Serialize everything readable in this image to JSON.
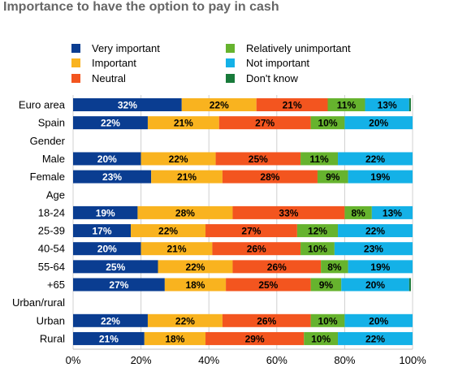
{
  "chart_data": {
    "type": "bar",
    "orientation": "horizontal",
    "stacked": true,
    "title": "Importance to have the option to pay in cash",
    "xlabel": "",
    "ylabel": "",
    "xlim": [
      0,
      100
    ],
    "x_ticks": [
      "0%",
      "20%",
      "40%",
      "60%",
      "80%",
      "100%"
    ],
    "grid": true,
    "legend_position": "top",
    "categories": [
      "Euro area",
      "Spain",
      "Gender",
      "Male",
      "Female",
      "Age",
      "18-24",
      "25-39",
      "40-54",
      "55-64",
      "+65",
      "Urban/rural",
      "Urban",
      "Rural"
    ],
    "series": [
      {
        "name": "Very important",
        "color": "#0a3d91",
        "label_color": "#ffffff",
        "values": [
          32,
          22,
          null,
          20,
          23,
          null,
          19,
          17,
          20,
          25,
          27,
          null,
          22,
          21
        ]
      },
      {
        "name": "Important",
        "color": "#f9b31f",
        "label_color": "#000000",
        "values": [
          22,
          21,
          null,
          22,
          21,
          null,
          28,
          22,
          21,
          22,
          18,
          null,
          22,
          18
        ]
      },
      {
        "name": "Neutral",
        "color": "#f3551f",
        "label_color": "#000000",
        "values": [
          21,
          27,
          null,
          25,
          28,
          null,
          33,
          27,
          26,
          26,
          25,
          null,
          26,
          29
        ]
      },
      {
        "name": "Relatively unimportant",
        "color": "#66b32e",
        "label_color": "#000000",
        "values": [
          11,
          10,
          null,
          11,
          9,
          null,
          8,
          12,
          10,
          8,
          9,
          null,
          10,
          10
        ]
      },
      {
        "name": "Not important",
        "color": "#14b1e7",
        "label_color": "#000000",
        "values": [
          13,
          20,
          null,
          22,
          19,
          null,
          13,
          22,
          23,
          19,
          20,
          null,
          20,
          22
        ]
      },
      {
        "name": "Don't know",
        "color": "#187a3a",
        "label_color": "#ffffff",
        "values": [
          0.5,
          0.5,
          null,
          0.5,
          0.5,
          null,
          0.5,
          0.5,
          0.5,
          0.5,
          0.5,
          null,
          0.5,
          0.5
        ]
      }
    ]
  }
}
